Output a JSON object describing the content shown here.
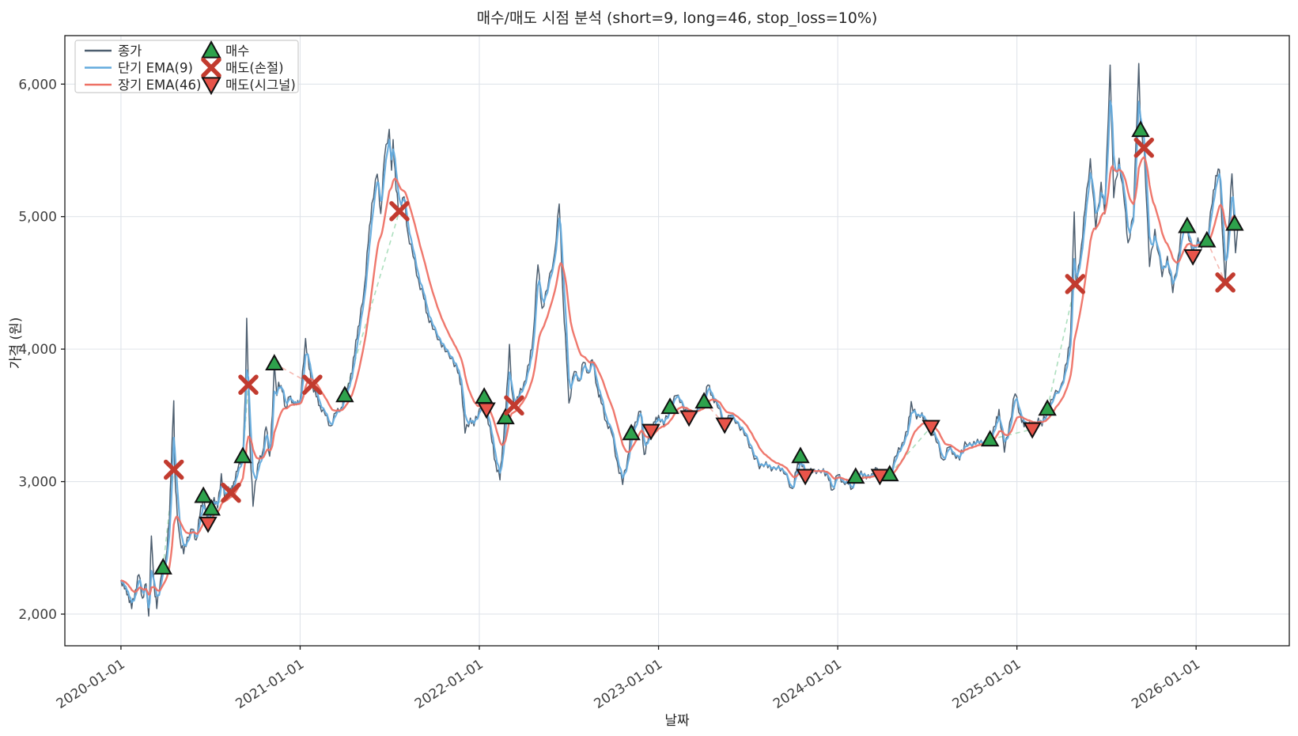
{
  "figure": {
    "title": "매수/매도 시점 분석 (short=9, long=46, stop_loss=10%)",
    "xlabel": "날짜",
    "ylabel": "가격 (원)"
  },
  "legend": {
    "lines": [
      {
        "label": "종가",
        "color": "#4d5e6f"
      },
      {
        "label": "단기 EMA(9)",
        "color": "#64abdd"
      },
      {
        "label": "장기 EMA(46)",
        "color": "#ee7165"
      }
    ],
    "markers": [
      {
        "label": "매수",
        "shape": "triangle-up",
        "color": "#2ea24c"
      },
      {
        "label": "매도(손절)",
        "shape": "x",
        "color": "#c23b2f"
      },
      {
        "label": "매도(시그널)",
        "shape": "triangle-down",
        "color": "#e8544a"
      }
    ]
  },
  "chart_data": {
    "type": "line",
    "title": "매수/매도 시점 분석 (short=9, long=46, stop_loss=10%)",
    "xlabel": "날짜",
    "ylabel": "가격 (원)",
    "grid": true,
    "legend_position": "upper left",
    "xlim": [
      2019.687,
      2026.52
    ],
    "ylim": [
      1761,
      6366
    ],
    "x_ticks": [
      {
        "t": 2020.0,
        "label": "2020-01-01"
      },
      {
        "t": 2021.0,
        "label": "2021-01-01"
      },
      {
        "t": 2022.0,
        "label": "2022-01-01"
      },
      {
        "t": 2023.0,
        "label": "2023-01-01"
      },
      {
        "t": 2024.0,
        "label": "2024-01-01"
      },
      {
        "t": 2025.0,
        "label": "2025-01-01"
      },
      {
        "t": 2026.0,
        "label": "2026-01-01"
      }
    ],
    "y_ticks": [
      {
        "v": 2000,
        "label": "2,000"
      },
      {
        "v": 3000,
        "label": "3,000"
      },
      {
        "v": 4000,
        "label": "4,000"
      },
      {
        "v": 5000,
        "label": "5,000"
      },
      {
        "v": 6000,
        "label": "6,000"
      }
    ],
    "series": [
      {
        "name": "종가",
        "color": "#4d5e6f",
        "width": 1.5
      },
      {
        "name": "단기 EMA(9)",
        "color": "#64abdd",
        "width": 2.2,
        "derived": "ema",
        "tau_days": 4.5
      },
      {
        "name": "장기 EMA(46)",
        "color": "#ee7165",
        "width": 2.4,
        "derived": "ema",
        "tau_days": 23
      }
    ],
    "close_points": [
      [
        2020.0,
        2256
      ],
      [
        2020.02,
        2190
      ],
      [
        2020.04,
        2150
      ],
      [
        2020.06,
        2042
      ],
      [
        2020.08,
        2180
      ],
      [
        2020.1,
        2298
      ],
      [
        2020.12,
        2120
      ],
      [
        2020.14,
        2230
      ],
      [
        2020.155,
        1985
      ],
      [
        2020.17,
        2590
      ],
      [
        2020.185,
        2220
      ],
      [
        2020.2,
        2042
      ],
      [
        2020.22,
        2250
      ],
      [
        2020.235,
        2352
      ],
      [
        2020.25,
        2420
      ],
      [
        2020.27,
        2700
      ],
      [
        2020.285,
        3300
      ],
      [
        2020.295,
        3610
      ],
      [
        2020.3,
        3090
      ],
      [
        2020.315,
        2720
      ],
      [
        2020.33,
        2560
      ],
      [
        2020.35,
        2455
      ],
      [
        2020.37,
        2580
      ],
      [
        2020.4,
        2640
      ],
      [
        2020.42,
        2560
      ],
      [
        2020.44,
        2740
      ],
      [
        2020.46,
        2892
      ],
      [
        2020.475,
        2760
      ],
      [
        2020.49,
        2683
      ],
      [
        2020.505,
        2796
      ],
      [
        2020.52,
        2880
      ],
      [
        2020.54,
        2800
      ],
      [
        2020.56,
        3060
      ],
      [
        2020.58,
        2850
      ],
      [
        2020.6,
        2960
      ],
      [
        2020.615,
        2916
      ],
      [
        2020.63,
        3000
      ],
      [
        2020.65,
        3080
      ],
      [
        2020.68,
        3192
      ],
      [
        2020.695,
        3700
      ],
      [
        2020.702,
        4233
      ],
      [
        2020.711,
        3731
      ],
      [
        2020.72,
        3280
      ],
      [
        2020.737,
        2814
      ],
      [
        2020.75,
        3000
      ],
      [
        2020.77,
        3150
      ],
      [
        2020.79,
        3220
      ],
      [
        2020.81,
        3413
      ],
      [
        2020.83,
        3192
      ],
      [
        2020.845,
        3500
      ],
      [
        2020.856,
        3892
      ],
      [
        2020.87,
        3650
      ],
      [
        2020.88,
        3750
      ],
      [
        2020.9,
        3680
      ],
      [
        2020.92,
        3560
      ],
      [
        2020.94,
        3640
      ],
      [
        2020.96,
        3600
      ],
      [
        2020.98,
        3580
      ],
      [
        2021.0,
        3620
      ],
      [
        2021.02,
        3900
      ],
      [
        2021.03,
        4080
      ],
      [
        2021.05,
        3850
      ],
      [
        2021.068,
        3731
      ],
      [
        2021.09,
        3640
      ],
      [
        2021.11,
        3574
      ],
      [
        2021.14,
        3500
      ],
      [
        2021.17,
        3420
      ],
      [
        2021.2,
        3520
      ],
      [
        2021.23,
        3560
      ],
      [
        2021.249,
        3652
      ],
      [
        2021.27,
        3740
      ],
      [
        2021.29,
        3820
      ],
      [
        2021.311,
        4069
      ],
      [
        2021.33,
        4180
      ],
      [
        2021.36,
        4487
      ],
      [
        2021.38,
        4800
      ],
      [
        2021.4,
        5100
      ],
      [
        2021.43,
        5321
      ],
      [
        2021.45,
        5023
      ],
      [
        2021.47,
        5440
      ],
      [
        2021.497,
        5659
      ],
      [
        2021.51,
        5350
      ],
      [
        2021.519,
        5581
      ],
      [
        2021.535,
        5200
      ],
      [
        2021.554,
        5041
      ],
      [
        2021.58,
        5150
      ],
      [
        2021.6,
        4886
      ],
      [
        2021.63,
        4700
      ],
      [
        2021.66,
        4528
      ],
      [
        2021.69,
        4380
      ],
      [
        2021.71,
        4266
      ],
      [
        2021.74,
        4150
      ],
      [
        2021.78,
        4069
      ],
      [
        2021.81,
        3980
      ],
      [
        2021.85,
        3932
      ],
      [
        2021.88,
        3820
      ],
      [
        2021.9,
        3729
      ],
      [
        2021.92,
        3366
      ],
      [
        2021.95,
        3480
      ],
      [
        2021.97,
        3420
      ],
      [
        2022.0,
        3550
      ],
      [
        2022.027,
        3641
      ],
      [
        2022.04,
        3545
      ],
      [
        2022.07,
        3300
      ],
      [
        2022.09,
        3150
      ],
      [
        2022.115,
        3013
      ],
      [
        2022.13,
        3280
      ],
      [
        2022.146,
        3485
      ],
      [
        2022.168,
        4036
      ],
      [
        2022.18,
        3700
      ],
      [
        2022.194,
        3575
      ],
      [
        2022.22,
        3640
      ],
      [
        2022.25,
        3750
      ],
      [
        2022.28,
        3890
      ],
      [
        2022.3,
        4100
      ],
      [
        2022.327,
        4636
      ],
      [
        2022.35,
        4307
      ],
      [
        2022.38,
        4450
      ],
      [
        2022.42,
        4725
      ],
      [
        2022.446,
        5095
      ],
      [
        2022.468,
        4367
      ],
      [
        2022.486,
        3950
      ],
      [
        2022.5,
        3593
      ],
      [
        2022.53,
        3831
      ],
      [
        2022.56,
        3760
      ],
      [
        2022.58,
        3900
      ],
      [
        2022.61,
        3820
      ],
      [
        2022.63,
        3920
      ],
      [
        2022.66,
        3700
      ],
      [
        2022.68,
        3593
      ],
      [
        2022.71,
        3450
      ],
      [
        2022.737,
        3371
      ],
      [
        2022.77,
        3150
      ],
      [
        2022.8,
        2978
      ],
      [
        2022.83,
        3200
      ],
      [
        2022.848,
        3365
      ],
      [
        2022.87,
        3450
      ],
      [
        2022.9,
        3532
      ],
      [
        2022.92,
        3204
      ],
      [
        2022.94,
        3300
      ],
      [
        2022.958,
        3383
      ],
      [
        2022.98,
        3450
      ],
      [
        2023.0,
        3500
      ],
      [
        2023.03,
        3420
      ],
      [
        2023.064,
        3563
      ],
      [
        2023.1,
        3650
      ],
      [
        2023.13,
        3600
      ],
      [
        2023.17,
        3485
      ],
      [
        2023.2,
        3520
      ],
      [
        2023.23,
        3560
      ],
      [
        2023.254,
        3605
      ],
      [
        2023.276,
        3729
      ],
      [
        2023.3,
        3650
      ],
      [
        2023.33,
        3560
      ],
      [
        2023.369,
        3431
      ],
      [
        2023.4,
        3500
      ],
      [
        2023.444,
        3443
      ],
      [
        2023.48,
        3350
      ],
      [
        2023.52,
        3250
      ],
      [
        2023.563,
        3097
      ],
      [
        2023.6,
        3150
      ],
      [
        2023.63,
        3080
      ],
      [
        2023.67,
        3120
      ],
      [
        2023.7,
        3060
      ],
      [
        2023.748,
        2948
      ],
      [
        2023.77,
        3080
      ],
      [
        2023.792,
        3192
      ],
      [
        2023.819,
        3043
      ],
      [
        2023.85,
        3100
      ],
      [
        2023.88,
        3060
      ],
      [
        2023.92,
        3097
      ],
      [
        2023.95,
        3010
      ],
      [
        2023.97,
        2936
      ],
      [
        2024.0,
        3050
      ],
      [
        2024.03,
        3000
      ],
      [
        2024.06,
        2980
      ],
      [
        2024.08,
        2948
      ],
      [
        2024.1,
        3037
      ],
      [
        2024.13,
        3080
      ],
      [
        2024.16,
        3020
      ],
      [
        2024.19,
        3060
      ],
      [
        2024.22,
        3100
      ],
      [
        2024.235,
        3043
      ],
      [
        2024.27,
        3010
      ],
      [
        2024.29,
        3055
      ],
      [
        2024.33,
        3200
      ],
      [
        2024.36,
        3294
      ],
      [
        2024.39,
        3380
      ],
      [
        2024.41,
        3604
      ],
      [
        2024.44,
        3473
      ],
      [
        2024.47,
        3520
      ],
      [
        2024.49,
        3440
      ],
      [
        2024.52,
        3413
      ],
      [
        2024.55,
        3300
      ],
      [
        2024.59,
        3163
      ],
      [
        2024.62,
        3260
      ],
      [
        2024.65,
        3210
      ],
      [
        2024.68,
        3163
      ],
      [
        2024.71,
        3300
      ],
      [
        2024.75,
        3264
      ],
      [
        2024.78,
        3320
      ],
      [
        2024.81,
        3280
      ],
      [
        2024.85,
        3318
      ],
      [
        2024.88,
        3420
      ],
      [
        2024.9,
        3545
      ],
      [
        2024.93,
        3222
      ],
      [
        2024.96,
        3450
      ],
      [
        2024.99,
        3663
      ],
      [
        2025.02,
        3500
      ],
      [
        2025.04,
        3413
      ],
      [
        2025.07,
        3450
      ],
      [
        2025.09,
        3395
      ],
      [
        2025.12,
        3480
      ],
      [
        2025.14,
        3420
      ],
      [
        2025.17,
        3550
      ],
      [
        2025.2,
        3620
      ],
      [
        2025.25,
        3741
      ],
      [
        2025.28,
        3900
      ],
      [
        2025.3,
        4129
      ],
      [
        2025.32,
        5035
      ],
      [
        2025.33,
        4491
      ],
      [
        2025.35,
        4650
      ],
      [
        2025.36,
        4785
      ],
      [
        2025.38,
        5050
      ],
      [
        2025.41,
        5437
      ],
      [
        2025.44,
        4904
      ],
      [
        2025.47,
        5260
      ],
      [
        2025.49,
        5020
      ],
      [
        2025.52,
        6144
      ],
      [
        2025.54,
        5142
      ],
      [
        2025.57,
        5440
      ],
      [
        2025.6,
        5100
      ],
      [
        2025.62,
        4802
      ],
      [
        2025.65,
        5000
      ],
      [
        2025.68,
        6156
      ],
      [
        2025.69,
        5653
      ],
      [
        2025.71,
        5520
      ],
      [
        2025.74,
        4623
      ],
      [
        2025.77,
        4904
      ],
      [
        2025.81,
        4546
      ],
      [
        2025.84,
        4700
      ],
      [
        2025.87,
        4426
      ],
      [
        2025.9,
        4700
      ],
      [
        2025.92,
        4904
      ],
      [
        2025.95,
        4928
      ],
      [
        2025.98,
        4701
      ],
      [
        2026.01,
        4840
      ],
      [
        2026.03,
        4760
      ],
      [
        2026.06,
        4820
      ],
      [
        2026.09,
        5100
      ],
      [
        2026.11,
        5310
      ],
      [
        2026.13,
        5355
      ],
      [
        2026.15,
        4800
      ],
      [
        2026.163,
        4503
      ],
      [
        2026.18,
        4900
      ],
      [
        2026.2,
        5323
      ],
      [
        2026.22,
        4727
      ],
      [
        2026.235,
        4950
      ]
    ],
    "markers": {
      "buy": {
        "label": "매수",
        "shape": "triangle-up",
        "color": "#2ea24c",
        "points": [
          [
            2020.235,
            2352
          ],
          [
            2020.46,
            2892
          ],
          [
            2020.505,
            2796
          ],
          [
            2020.68,
            3192
          ],
          [
            2020.856,
            3892
          ],
          [
            2021.249,
            3652
          ],
          [
            2022.027,
            3641
          ],
          [
            2022.146,
            3485
          ],
          [
            2022.848,
            3365
          ],
          [
            2023.064,
            3563
          ],
          [
            2023.254,
            3605
          ],
          [
            2023.792,
            3192
          ],
          [
            2024.1,
            3037
          ],
          [
            2024.29,
            3055
          ],
          [
            2024.85,
            3318
          ],
          [
            2025.17,
            3550
          ],
          [
            2025.69,
            5653
          ],
          [
            2025.95,
            4928
          ],
          [
            2026.06,
            4820
          ],
          [
            2026.215,
            4946
          ]
        ]
      },
      "sell_stop": {
        "label": "매도(손절)",
        "shape": "x",
        "color": "#c23b2f",
        "points": [
          [
            2020.295,
            3090
          ],
          [
            2020.614,
            2916
          ],
          [
            2020.711,
            3731
          ],
          [
            2021.068,
            3731
          ],
          [
            2021.554,
            5041
          ],
          [
            2022.194,
            3575
          ],
          [
            2025.325,
            4491
          ],
          [
            2025.709,
            5520
          ],
          [
            2026.163,
            4503
          ]
        ]
      },
      "sell_signal": {
        "label": "매도(시그널)",
        "shape": "triangle-down",
        "color": "#e8544a",
        "points": [
          [
            2020.486,
            2683
          ],
          [
            2022.04,
            3545
          ],
          [
            2022.958,
            3383
          ],
          [
            2023.17,
            3485
          ],
          [
            2023.369,
            3431
          ],
          [
            2023.819,
            3043
          ],
          [
            2024.235,
            3043
          ],
          [
            2024.521,
            3413
          ],
          [
            2025.086,
            3395
          ],
          [
            2025.982,
            4701
          ]
        ]
      }
    },
    "connectors": {
      "win_color": "#a5dcb8",
      "loss_color": "#f4b0a8",
      "pairs": [
        [
          2020.235,
          2352,
          2020.295,
          3090,
          "win"
        ],
        [
          2020.46,
          2892,
          2020.486,
          2683,
          "loss"
        ],
        [
          2020.505,
          2796,
          2020.614,
          2916,
          "win"
        ],
        [
          2020.68,
          3192,
          2020.711,
          3731,
          "win"
        ],
        [
          2020.856,
          3892,
          2021.068,
          3731,
          "loss"
        ],
        [
          2021.249,
          3652,
          2021.554,
          5041,
          "win"
        ],
        [
          2022.027,
          3641,
          2022.04,
          3545,
          "loss"
        ],
        [
          2022.146,
          3485,
          2022.194,
          3575,
          "win"
        ],
        [
          2022.848,
          3365,
          2022.958,
          3383,
          "win"
        ],
        [
          2023.064,
          3563,
          2023.17,
          3485,
          "loss"
        ],
        [
          2023.254,
          3605,
          2023.369,
          3431,
          "loss"
        ],
        [
          2023.792,
          3192,
          2023.819,
          3043,
          "loss"
        ],
        [
          2024.1,
          3037,
          2024.235,
          3043,
          "win"
        ],
        [
          2024.29,
          3055,
          2024.521,
          3413,
          "win"
        ],
        [
          2024.85,
          3318,
          2025.086,
          3395,
          "win"
        ],
        [
          2025.17,
          3550,
          2025.325,
          4491,
          "win"
        ],
        [
          2025.69,
          5653,
          2025.709,
          5520,
          "loss"
        ],
        [
          2025.95,
          4928,
          2025.982,
          4701,
          "loss"
        ],
        [
          2026.06,
          4820,
          2026.163,
          4503,
          "loss"
        ]
      ]
    },
    "style": {
      "grid_color": "#e0e4ea",
      "spine_color": "#1a1a1a",
      "tick_label_color": "#404040",
      "background": "#ffffff"
    }
  }
}
